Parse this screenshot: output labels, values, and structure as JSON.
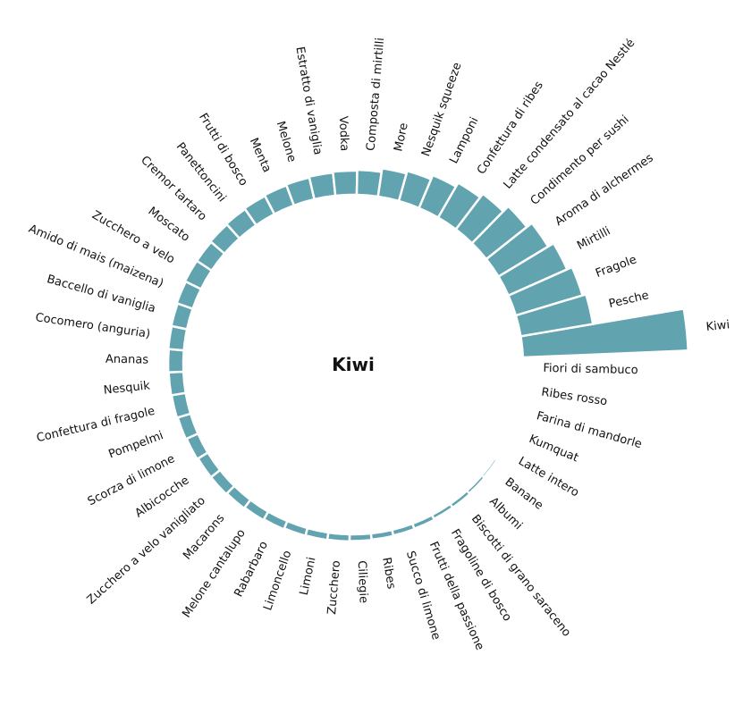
{
  "chart_data": {
    "type": "bar",
    "layout": "radial",
    "title": "",
    "center_label": "Kiwi",
    "bar_color": "#62a3b0",
    "gap_color": "#ffffff",
    "categories": [
      "Kiwi",
      "Fiori di sambuco",
      "Ribes rosso",
      "Farina di mandorle",
      "Kumquat",
      "Latte intero",
      "Banane",
      "Albumi",
      "Biscotti di grano saraceno",
      "Fragoline di bosco",
      "Frutti della passione",
      "Succo di limone",
      "Ribes",
      "Ciliegie",
      "Zucchero",
      "Limoni",
      "Limoncello",
      "Rabarbaro",
      "Melone cantalupo",
      "Macarons",
      "Zucchero a velo vanigliato",
      "Albicocche",
      "Scorza di limone",
      "Pompelmi",
      "Confettura di fragole",
      "Nesquik",
      "Ananas",
      "Cocomero (anguria)",
      "Baccello di vaniglia",
      "Amido di mais (maizena)",
      "Zucchero a velo",
      "Moscato",
      "Cremor tartaro",
      "Panettoncini",
      "Frutti di bosco",
      "Menta",
      "Melone",
      "Estratto di vaniglia",
      "Vodka",
      "Composta di mirtilli",
      "More",
      "Nesquik squeeze",
      "Lamponi",
      "Confettura di ribes",
      "Latte condensato al cacao Nestlé",
      "Condimento per sushi",
      "Aroma di alchermes",
      "Mirtilli",
      "Fragole",
      "Pesche"
    ],
    "values": [
      185,
      0.5,
      0.8,
      1.2,
      2.0,
      2.5,
      3.0,
      4.0,
      5.0,
      5.0,
      6.0,
      6.5,
      7.0,
      7.5,
      8.0,
      8.5,
      9.0,
      10.0,
      11.0,
      12.0,
      13.0,
      13.0,
      14.0,
      15.0,
      16.0,
      16.5,
      17.0,
      17.5,
      18.0,
      19.0,
      20.0,
      20.0,
      21.0,
      22.0,
      23.0,
      24.0,
      25.0,
      26.0,
      27.0,
      28.0,
      32.0,
      35.0,
      40.0,
      45.0,
      50.0,
      58.0,
      65.0,
      72.0,
      78.0,
      82.0
    ],
    "legend": "none",
    "grid": false
  }
}
